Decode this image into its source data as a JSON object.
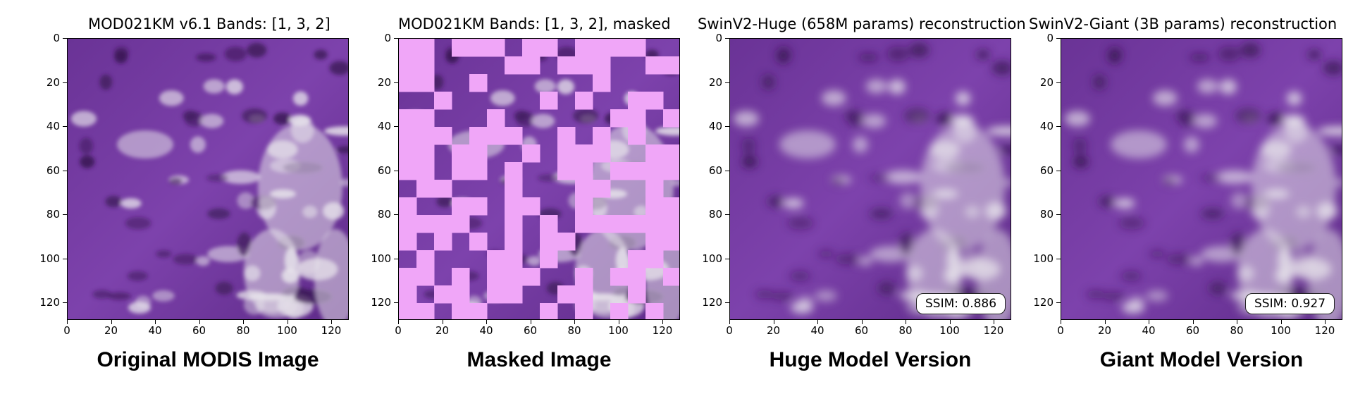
{
  "panels": [
    {
      "title": "MOD021KM v6.1 Bands: [1, 3, 2]",
      "caption": "Original MODIS Image",
      "image": "original-modis-image",
      "masked": false,
      "ssim": null
    },
    {
      "title": "MOD021KM Bands: [1, 3, 2], masked",
      "caption": "Masked Image",
      "image": "masked-modis-image",
      "masked": true,
      "ssim": null
    },
    {
      "title": "SwinV2-Huge (658M params) reconstruction",
      "caption": "Huge Model Version",
      "image": "huge-model-reconstruction",
      "masked": false,
      "ssim": "SSIM: 0.886"
    },
    {
      "title": "SwinV2-Giant (3B params) reconstruction",
      "caption": "Giant Model Version",
      "image": "giant-model-reconstruction",
      "masked": false,
      "ssim": "SSIM: 0.927"
    }
  ],
  "axis": {
    "x_ticks": [
      "0",
      "20",
      "40",
      "60",
      "80",
      "100",
      "120"
    ],
    "y_ticks": [
      "0",
      "20",
      "40",
      "60",
      "80",
      "100",
      "120"
    ],
    "range": [
      0,
      128
    ]
  },
  "colors": {
    "mask": "#f0a6f8",
    "purple_dark": "#4a1f6e",
    "purple": "#7a3ea8",
    "cloud": "#e6e2ea"
  }
}
